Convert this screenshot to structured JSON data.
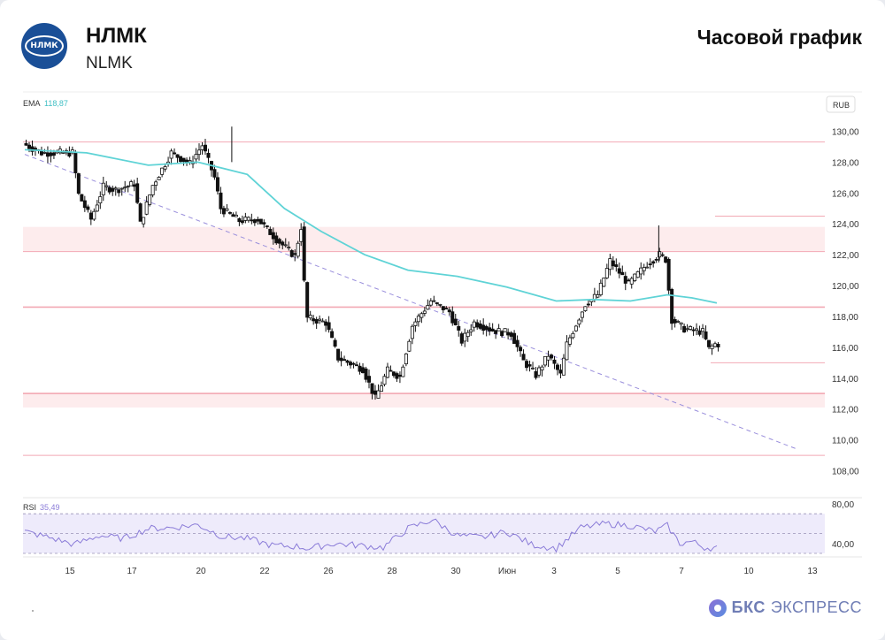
{
  "header": {
    "logo_text": "НЛМК",
    "ticker_name": "НЛМК",
    "ticker_code": "NLMK",
    "chart_title": "Часовой график"
  },
  "brand": {
    "name_bold": "БКС",
    "name_rest": "ЭКСПРЕСС"
  },
  "colors": {
    "candle": "#111111",
    "ema": "#5fd3d6",
    "level_line": "#f2a9b4",
    "level_zone": "#fdeced",
    "trendline": "#9a8fdc",
    "rsi_line": "#8a7bd8",
    "rsi_band": "#eeebfb"
  },
  "chart_data": [
    {
      "type": "candlestick",
      "title": "",
      "currency_label": "RUB",
      "indicator": {
        "name": "EMA",
        "value": "118,87"
      },
      "y_ticks": [
        "130,00",
        "128,00",
        "126,00",
        "124,00",
        "122,00",
        "120,00",
        "118,00",
        "116,00",
        "114,00",
        "112,00",
        "110,00",
        "108,00"
      ],
      "ylim": [
        107.0,
        131.0
      ],
      "x_ticks": [
        "15",
        "17",
        "20",
        "22",
        "26",
        "28",
        "30",
        "Июн",
        "3",
        "5",
        "7",
        "10",
        "13"
      ],
      "horizontal_levels": [
        129.3,
        122.2,
        118.6,
        113.0,
        109.0,
        124.5,
        115.0
      ],
      "zones": [
        {
          "from": 122.2,
          "to": 123.8
        },
        {
          "from": 112.1,
          "to": 113.1
        }
      ],
      "trendline": {
        "from": {
          "x": 0,
          "y": 128.5
        },
        "to": {
          "x": 125,
          "y": 109.4
        }
      },
      "price_path": [
        [
          0,
          129.2
        ],
        [
          3,
          128.6
        ],
        [
          8,
          128.6
        ],
        [
          9,
          125.9
        ],
        [
          11,
          124.3
        ],
        [
          13,
          126.4
        ],
        [
          15,
          126.2
        ],
        [
          18,
          126.6
        ],
        [
          19,
          124.0
        ],
        [
          21,
          126.5
        ],
        [
          24,
          128.6
        ],
        [
          27,
          127.9
        ],
        [
          29,
          129.1
        ],
        [
          31,
          127.0
        ],
        [
          32,
          125.0
        ],
        [
          35,
          124.2
        ],
        [
          38,
          124.3
        ],
        [
          41,
          123.0
        ],
        [
          44,
          121.9
        ],
        [
          45,
          123.8
        ],
        [
          45.5,
          120.2
        ],
        [
          46,
          117.9
        ],
        [
          49,
          117.6
        ],
        [
          51,
          115.3
        ],
        [
          55,
          114.6
        ],
        [
          57,
          112.7
        ],
        [
          59,
          114.5
        ],
        [
          61,
          114.1
        ],
        [
          63,
          117.4
        ],
        [
          66,
          119.0
        ],
        [
          69,
          118.3
        ],
        [
          71,
          116.4
        ],
        [
          73,
          117.6
        ],
        [
          76,
          117.1
        ],
        [
          79,
          116.9
        ],
        [
          81,
          115.1
        ],
        [
          83,
          114.2
        ],
        [
          85,
          115.5
        ],
        [
          87,
          114.2
        ],
        [
          88,
          116.2
        ],
        [
          91,
          118.8
        ],
        [
          93,
          119.4
        ],
        [
          95,
          121.6
        ],
        [
          98,
          120.1
        ],
        [
          101,
          121.4
        ],
        [
          103,
          122.0
        ],
        [
          104,
          121.7
        ],
        [
          105,
          117.8
        ],
        [
          107,
          117.2
        ],
        [
          110,
          117.0
        ],
        [
          111,
          115.9
        ],
        [
          112,
          116.2
        ]
      ],
      "ema_path": [
        [
          0,
          128.8
        ],
        [
          10,
          128.6
        ],
        [
          20,
          127.8
        ],
        [
          28,
          128.0
        ],
        [
          36,
          127.2
        ],
        [
          42,
          125.0
        ],
        [
          48,
          123.5
        ],
        [
          55,
          122.0
        ],
        [
          62,
          121.0
        ],
        [
          70,
          120.6
        ],
        [
          78,
          119.9
        ],
        [
          86,
          119.0
        ],
        [
          92,
          119.1
        ],
        [
          98,
          119.0
        ],
        [
          104,
          119.4
        ],
        [
          108,
          119.2
        ],
        [
          112,
          118.87
        ]
      ],
      "rsi": {
        "label": "RSI",
        "value": "35,49",
        "y_ticks": [
          "80,00",
          "40,00"
        ],
        "ylim": [
          30,
          80
        ],
        "band": [
          30,
          70
        ],
        "mid": 50,
        "path": [
          [
            0,
            52
          ],
          [
            4,
            46
          ],
          [
            8,
            39
          ],
          [
            12,
            48
          ],
          [
            16,
            45
          ],
          [
            20,
            55
          ],
          [
            24,
            56
          ],
          [
            28,
            59
          ],
          [
            32,
            47
          ],
          [
            36,
            45
          ],
          [
            40,
            38
          ],
          [
            44,
            37
          ],
          [
            46,
            35
          ],
          [
            50,
            40
          ],
          [
            54,
            38
          ],
          [
            58,
            36
          ],
          [
            62,
            55
          ],
          [
            66,
            64
          ],
          [
            70,
            48
          ],
          [
            74,
            46
          ],
          [
            78,
            52
          ],
          [
            82,
            39
          ],
          [
            86,
            35
          ],
          [
            90,
            56
          ],
          [
            94,
            60
          ],
          [
            98,
            58
          ],
          [
            102,
            52
          ],
          [
            104,
            58
          ],
          [
            106,
            40
          ],
          [
            108,
            42
          ],
          [
            110,
            36
          ],
          [
            112,
            35.5
          ]
        ]
      }
    }
  ]
}
